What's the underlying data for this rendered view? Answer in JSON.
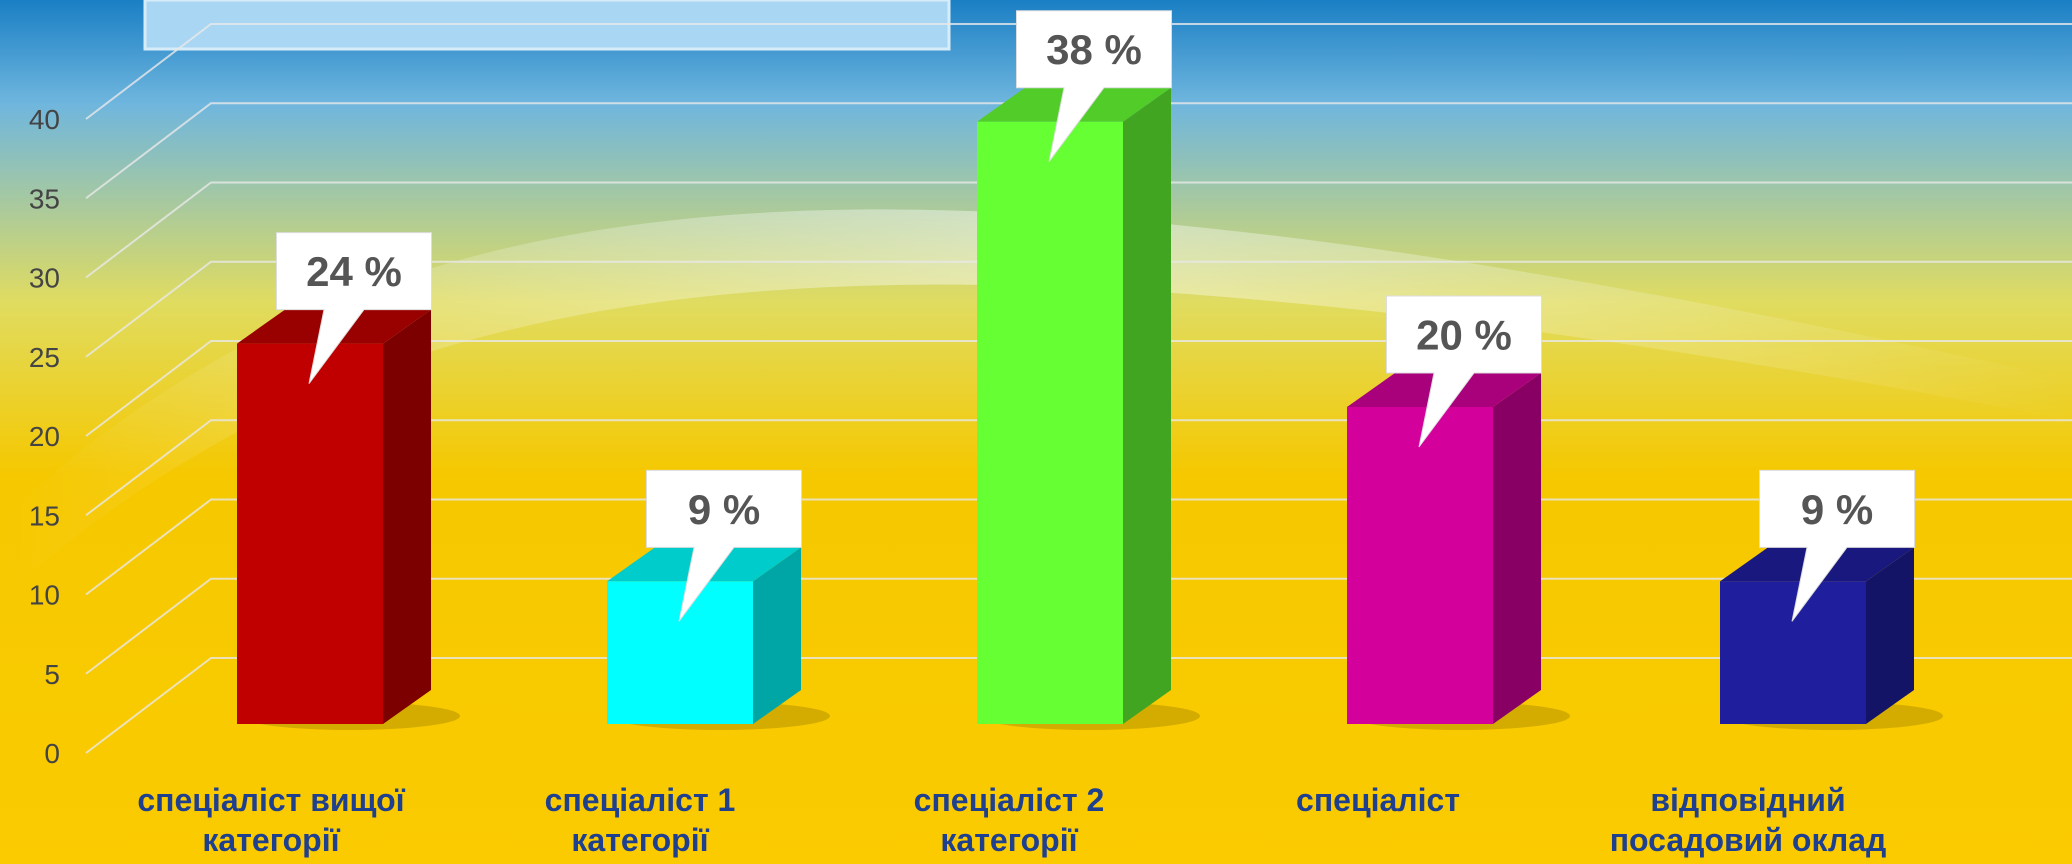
{
  "chart_data": {
    "type": "bar3d",
    "categories": [
      "спеціаліст вищої\nкатегорії",
      "спеціаліст 1\nкатегорії",
      "спеціаліст 2\nкатегорії",
      "спеціаліст",
      "відповідний\nпосадовий оклад"
    ],
    "values": [
      24,
      9,
      38,
      20,
      9
    ],
    "value_labels": [
      "24 %",
      "9 %",
      "38 %",
      "20 %",
      "9 %"
    ],
    "colors": [
      "#c00000",
      "#00ffff",
      "#66ff33",
      "#d4009c",
      "#1f1f9e"
    ],
    "ylim": [
      0,
      45
    ],
    "yticks": [
      0,
      5,
      10,
      15,
      20,
      25,
      30,
      35,
      40
    ],
    "grid": true
  }
}
